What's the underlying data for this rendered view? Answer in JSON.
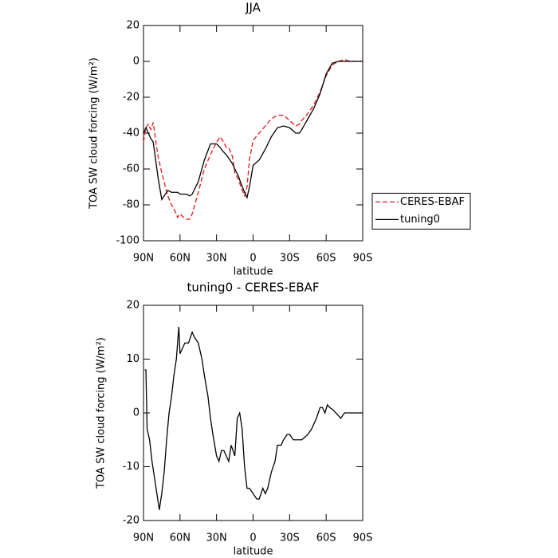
{
  "chart_data": [
    {
      "type": "line",
      "title": "JJA",
      "xlabel": "latitude",
      "ylabel": "TOA SW cloud forcing (W/m²)",
      "x": [
        90,
        88,
        86,
        84,
        82,
        80,
        78,
        75,
        72,
        70,
        67,
        65,
        62,
        60,
        57,
        55,
        52,
        50,
        45,
        40,
        35,
        30,
        27,
        25,
        22,
        20,
        17,
        15,
        12,
        10,
        7,
        5,
        3,
        0,
        -5,
        -10,
        -15,
        -20,
        -25,
        -30,
        -35,
        -38,
        -40,
        -45,
        -50,
        -55,
        -60,
        -65,
        -70,
        -75,
        -80,
        -85,
        -90
      ],
      "series": [
        {
          "name": "CERES-EBAF",
          "color": "#e41a1c",
          "dash": true,
          "values": [
            -45,
            -37,
            -35,
            -38,
            -34,
            -44,
            -53,
            -62,
            -70,
            -75,
            -80,
            -82,
            -87,
            -85,
            -87,
            -88,
            -88,
            -85,
            -73,
            -60,
            -52,
            -45,
            -42,
            -44,
            -48,
            -48,
            -53,
            -62,
            -66,
            -70,
            -75,
            -70,
            -55,
            -44,
            -40,
            -36,
            -32,
            -30,
            -30,
            -33,
            -36,
            -35,
            -33,
            -29,
            -24,
            -17,
            -8,
            -2,
            0,
            1,
            0,
            0,
            0
          ]
        },
        {
          "name": "tuning0",
          "color": "#000000",
          "dash": false,
          "values": [
            -40,
            -37,
            -40,
            -43,
            -45,
            -55,
            -65,
            -77,
            -74,
            -72,
            -73,
            -73,
            -73,
            -74,
            -74,
            -74,
            -75,
            -74,
            -67,
            -55,
            -46,
            -46,
            -48,
            -50,
            -52,
            -54,
            -57,
            -60,
            -64,
            -68,
            -73,
            -76,
            -70,
            -58,
            -55,
            -49,
            -42,
            -37,
            -36,
            -37,
            -40,
            -40,
            -38,
            -32,
            -26,
            -18,
            -7,
            -1,
            0,
            0,
            0,
            0,
            0
          ]
        }
      ],
      "xlim": [
        90,
        -90
      ],
      "xticks": [
        {
          "value": 90,
          "label": "90N"
        },
        {
          "value": 60,
          "label": "60N"
        },
        {
          "value": 30,
          "label": "30N"
        },
        0,
        {
          "value": -30,
          "label": "30S"
        },
        {
          "value": -60,
          "label": "60S"
        },
        {
          "value": -90,
          "label": "90S"
        }
      ],
      "ylim": [
        -100,
        20
      ],
      "yticks": [
        -100,
        -80,
        -60,
        -40,
        -20,
        0,
        20
      ],
      "legend": "right"
    },
    {
      "type": "line",
      "title": "tuning0 - CERES-EBAF",
      "xlabel": "latitude",
      "ylabel": "TOA SW cloud forcing (W/m²)",
      "x": [
        89,
        88,
        87,
        85,
        83,
        81,
        79,
        77,
        75,
        73,
        71,
        69,
        67,
        65,
        63,
        61,
        60,
        58,
        56,
        53,
        50,
        48,
        45,
        42,
        40,
        37,
        35,
        33,
        30,
        28,
        26,
        24,
        22,
        20,
        18,
        15,
        13,
        11,
        9,
        7,
        5,
        3,
        0,
        -3,
        -5,
        -8,
        -10,
        -12,
        -15,
        -18,
        -20,
        -23,
        -25,
        -28,
        -30,
        -33,
        -36,
        -40,
        -45,
        -48,
        -52,
        -55,
        -57,
        -59,
        -61,
        -63,
        -66,
        -70,
        -72,
        -75,
        -80,
        -85,
        -90
      ],
      "color": "#000000",
      "values": [
        8,
        8,
        -3,
        -5,
        -9,
        -12,
        -15,
        -18,
        -15,
        -11,
        -5,
        0,
        3,
        7,
        10,
        16,
        11,
        12,
        13,
        13,
        15,
        14,
        13,
        10,
        7,
        3,
        -1,
        -4,
        -8,
        -9,
        -7,
        -7,
        -8,
        -9,
        -6,
        -8,
        -1,
        0,
        -3,
        -10,
        -14,
        -14,
        -15,
        -16,
        -16,
        -14,
        -15,
        -14,
        -11,
        -9,
        -6,
        -6,
        -5,
        -4,
        -4,
        -5,
        -5,
        -5,
        -4,
        -3,
        -1,
        1,
        1,
        0,
        1.5,
        1,
        0.5,
        -0.5,
        -1,
        0,
        0,
        0,
        0
      ],
      "xlim": [
        90,
        -90
      ],
      "xticks": [
        {
          "value": 90,
          "label": "90N"
        },
        {
          "value": 60,
          "label": "60N"
        },
        {
          "value": 30,
          "label": "30N"
        },
        0,
        {
          "value": -30,
          "label": "30S"
        },
        {
          "value": -60,
          "label": "60S"
        },
        {
          "value": -90,
          "label": "90S"
        }
      ],
      "ylim": [
        -20,
        20
      ],
      "yticks": [
        -20,
        -10,
        0,
        10,
        20
      ]
    }
  ]
}
